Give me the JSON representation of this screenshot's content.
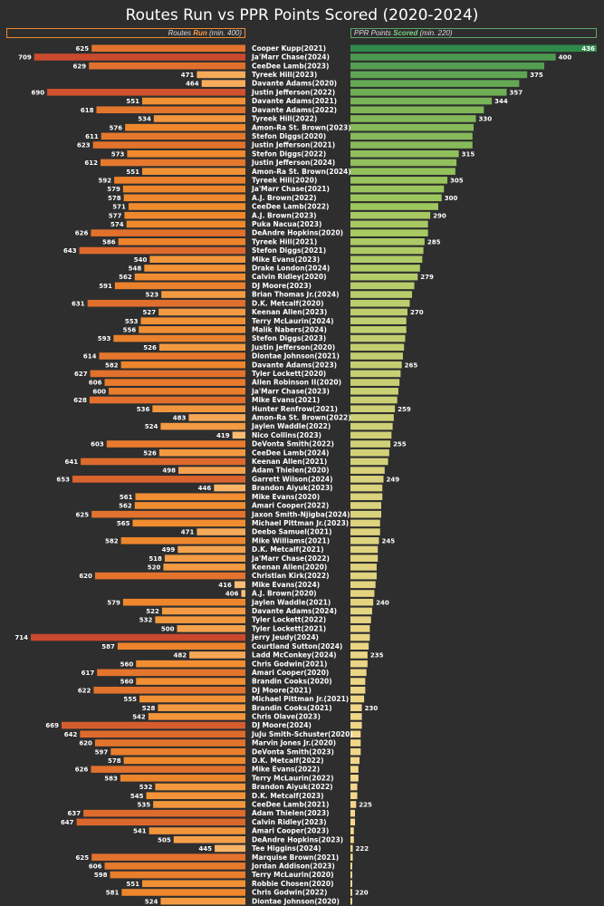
{
  "chart_data": {
    "type": "bar",
    "title": "Routes Run vs PPR Points Scored (2020-2024)",
    "left_header": {
      "prefix": "Routes ",
      "highlight": "Run",
      "suffix": " (min. 400)"
    },
    "right_header": {
      "prefix": "PPR Points ",
      "highlight": "Scored",
      "suffix": " (min. 220)"
    },
    "routes_range": [
      400,
      714
    ],
    "points_range": [
      220,
      436
    ],
    "colors": {
      "routes_low": "#fbc27a",
      "routes_high": "#c9482e",
      "points_high": "#2f8a4a",
      "points_mid": "#9fc85e",
      "points_low": "#fdd88e",
      "background": "#2e2e2e"
    },
    "categories": [
      "Cooper Kupp(2021)",
      "Ja'Marr Chase(2024)",
      "CeeDee Lamb(2023)",
      "Tyreek Hill(2023)",
      "Davante Adams(2020)",
      "Justin Jefferson(2022)",
      "Davante Adams(2021)",
      "Davante Adams(2022)",
      "Tyreek Hill(2022)",
      "Amon-Ra St. Brown(2023)",
      "Stefon Diggs(2020)",
      "Justin Jefferson(2021)",
      "Stefon Diggs(2022)",
      "Justin Jefferson(2024)",
      "Amon-Ra St. Brown(2024)",
      "Tyreek Hill(2020)",
      "Ja'Marr Chase(2021)",
      "A.J. Brown(2022)",
      "CeeDee Lamb(2022)",
      "A.J. Brown(2023)",
      "Puka Nacua(2023)",
      "DeAndre Hopkins(2020)",
      "Tyreek Hill(2021)",
      "Stefon Diggs(2021)",
      "Mike Evans(2023)",
      "Drake London(2024)",
      "Calvin Ridley(2020)",
      "DJ Moore(2023)",
      "Brian Thomas Jr.(2024)",
      "D.K. Metcalf(2020)",
      "Keenan Allen(2023)",
      "Terry McLaurin(2024)",
      "Malik Nabers(2024)",
      "Stefon Diggs(2023)",
      "Justin Jefferson(2020)",
      "Diontae Johnson(2021)",
      "Davante Adams(2023)",
      "Tyler Lockett(2020)",
      "Allen Robinson II(2020)",
      "Ja'Marr Chase(2023)",
      "Mike Evans(2021)",
      "Hunter Renfrow(2021)",
      "Amon-Ra St. Brown(2022)",
      "Jaylen Waddle(2022)",
      "Nico Collins(2023)",
      "DeVonta Smith(2022)",
      "CeeDee Lamb(2024)",
      "Keenan Allen(2021)",
      "Adam Thielen(2020)",
      "Garrett Wilson(2024)",
      "Brandon Aiyuk(2023)",
      "Mike Evans(2020)",
      "Amari Cooper(2022)",
      "Jaxon Smith-Njigba(2024)",
      "Michael Pittman Jr.(2023)",
      "Deebo Samuel(2021)",
      "Mike Williams(2021)",
      "D.K. Metcalf(2021)",
      "Ja'Marr Chase(2022)",
      "Keenan Allen(2020)",
      "Christian Kirk(2022)",
      "Mike Evans(2024)",
      "A.J. Brown(2020)",
      "Jaylen Waddle(2021)",
      "Davante Adams(2024)",
      "Tyler Lockett(2022)",
      "Tyler Lockett(2021)",
      "Jerry Jeudy(2024)",
      "Courtland Sutton(2024)",
      "Ladd McConkey(2024)",
      "Chris Godwin(2021)",
      "Amari Cooper(2020)",
      "Brandin Cooks(2020)",
      "DJ Moore(2021)",
      "Michael Pittman Jr.(2021)",
      "Brandin Cooks(2021)",
      "Chris Olave(2023)",
      "DJ Moore(2024)",
      "JuJu Smith-Schuster(2020)",
      "Marvin Jones Jr.(2020)",
      "DeVonta Smith(2023)",
      "D.K. Metcalf(2022)",
      "Mike Evans(2022)",
      "Terry McLaurin(2022)",
      "Brandon Aiyuk(2022)",
      "D.K. Metcalf(2023)",
      "CeeDee Lamb(2021)",
      "Adam Thielen(2023)",
      "Calvin Ridley(2023)",
      "Amari Cooper(2023)",
      "DeAndre Hopkins(2023)",
      "Tee Higgins(2024)",
      "Marquise Brown(2021)",
      "Jordan Addison(2023)",
      "Terry McLaurin(2020)",
      "Robbie Chosen(2020)",
      "Chris Godwin(2022)",
      "Diontae Johnson(2020)"
    ],
    "routes": [
      625,
      709,
      629,
      471,
      464,
      690,
      551,
      618,
      534,
      576,
      611,
      623,
      573,
      612,
      551,
      592,
      579,
      578,
      571,
      577,
      574,
      626,
      586,
      643,
      540,
      548,
      562,
      591,
      523,
      631,
      527,
      553,
      556,
      593,
      526,
      614,
      582,
      627,
      606,
      600,
      628,
      536,
      483,
      524,
      419,
      603,
      526,
      641,
      498,
      653,
      446,
      561,
      562,
      625,
      565,
      471,
      582,
      499,
      518,
      520,
      620,
      416,
      406,
      579,
      522,
      532,
      500,
      714,
      587,
      482,
      560,
      617,
      560,
      622,
      555,
      528,
      542,
      669,
      642,
      620,
      597,
      578,
      626,
      583,
      532,
      545,
      535,
      637,
      647,
      541,
      505,
      445,
      625,
      606,
      598,
      551,
      581,
      524
    ],
    "points": [
      436,
      400,
      390,
      375,
      368,
      357,
      344,
      337,
      330,
      328,
      327,
      327,
      315,
      313,
      312,
      305,
      302,
      300,
      297,
      290,
      288,
      288,
      285,
      284,
      283,
      281,
      279,
      276,
      274,
      272,
      270,
      269,
      269,
      268,
      267,
      266,
      265,
      264,
      263,
      262,
      261,
      259,
      258,
      257,
      256,
      255,
      254,
      253,
      250,
      249,
      248,
      248,
      247,
      247,
      246,
      246,
      245,
      244,
      244,
      243,
      243,
      242,
      241,
      240,
      239,
      238,
      237,
      237,
      236,
      235,
      235,
      234,
      233,
      233,
      232,
      230,
      230,
      230,
      229,
      229,
      229,
      228,
      227,
      227,
      226,
      226,
      225,
      224,
      224,
      223,
      223,
      222,
      222,
      221,
      221,
      221,
      220,
      220
    ],
    "routes_labels": [
      "625",
      "709",
      "629",
      "471",
      "464",
      "690",
      "551",
      "618",
      "534",
      "576",
      "611",
      "623",
      "573",
      "612",
      "551",
      "592",
      "579",
      "578",
      "571",
      "577",
      "574",
      "626",
      "586",
      "643",
      "540",
      "548",
      "562",
      "591",
      "523",
      "631",
      "527",
      "553",
      "556",
      "593",
      "526",
      "614",
      "582",
      "627",
      "606",
      "600",
      "628",
      "536",
      "483",
      "524",
      "419",
      "603",
      "526",
      "641",
      "498",
      "653",
      "446",
      "561",
      "562",
      "625",
      "565",
      "471",
      "582",
      "499",
      "518",
      "520",
      "620",
      "416",
      "406",
      "579",
      "522",
      "532",
      "500",
      "714",
      "587",
      "482",
      "560",
      "617",
      "560",
      "622",
      "555",
      "528",
      "542",
      "669",
      "642",
      "620",
      "597",
      "578",
      "626",
      "583",
      "532",
      "545",
      "535",
      "637",
      "647",
      "541",
      "505",
      "445",
      "625",
      "606",
      "598",
      "551",
      "581",
      "524"
    ],
    "points_labels": [
      {
        "i": 0,
        "text": "436"
      },
      {
        "i": 1,
        "text": "400"
      },
      {
        "i": 3,
        "text": "375"
      },
      {
        "i": 5,
        "text": "357"
      },
      {
        "i": 6,
        "text": "344"
      },
      {
        "i": 8,
        "text": "330"
      },
      {
        "i": 12,
        "text": "315"
      },
      {
        "i": 15,
        "text": "305"
      },
      {
        "i": 17,
        "text": "300"
      },
      {
        "i": 19,
        "text": "290"
      },
      {
        "i": 22,
        "text": "285"
      },
      {
        "i": 26,
        "text": "279"
      },
      {
        "i": 30,
        "text": "270"
      },
      {
        "i": 36,
        "text": "265"
      },
      {
        "i": 41,
        "text": "259"
      },
      {
        "i": 45,
        "text": "255"
      },
      {
        "i": 49,
        "text": "249"
      },
      {
        "i": 56,
        "text": "245"
      },
      {
        "i": 63,
        "text": "240"
      },
      {
        "i": 69,
        "text": "235"
      },
      {
        "i": 75,
        "text": "230"
      },
      {
        "i": 86,
        "text": "225"
      },
      {
        "i": 91,
        "text": "222"
      },
      {
        "i": 96,
        "text": "220"
      }
    ]
  }
}
